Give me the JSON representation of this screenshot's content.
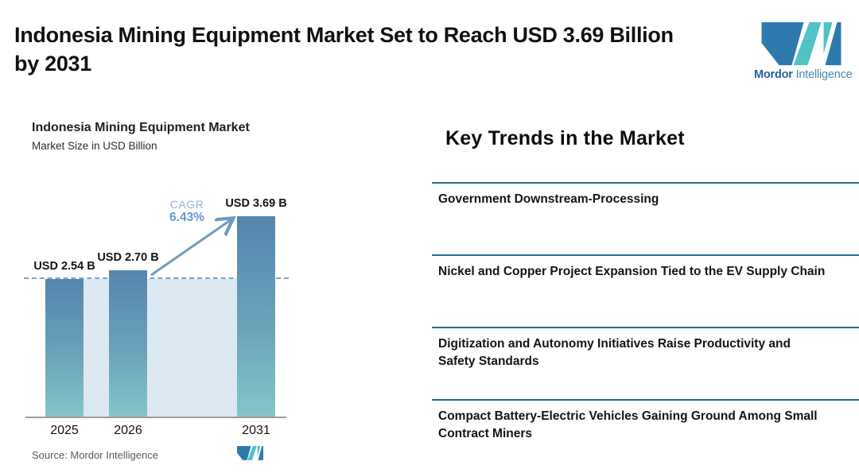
{
  "header": {
    "title": "Indonesia Mining Equipment Market Set to Reach USD 3.69 Billion by 2031",
    "title_lines": [
      "Indonesia Mining Equipment Market Set to Reach USD 3.69 Billion",
      "by 2031"
    ],
    "brand": {
      "name_bold": "Mordor",
      "name_light": "Intelligence"
    }
  },
  "chart": {
    "title": "Indonesia Mining Equipment Market",
    "subtitle": "Market Size in USD Billion",
    "cagr_label": "CAGR",
    "cagr_value": "6.43%",
    "source": "Source: Mordor Intelligence"
  },
  "chart_data": {
    "type": "bar",
    "categories": [
      "2025",
      "2026",
      "2031"
    ],
    "values": [
      2.54,
      2.7,
      3.69
    ],
    "value_labels": [
      "USD 2.54 B",
      "USD 2.70 B",
      "USD 3.69 B"
    ],
    "title": "Indonesia Mining Equipment Market",
    "ylabel": "Market Size in USD Billion",
    "ylim": [
      0,
      3.9
    ],
    "grid": false,
    "annotations": [
      {
        "type": "cagr-arrow",
        "label": "CAGR",
        "value": "6.43%",
        "from_category": "2026",
        "to_category": "2031"
      },
      {
        "type": "reference-line",
        "style": "dashed",
        "at_value": 2.54
      }
    ]
  },
  "trends": {
    "heading": "Key Trends in the Market",
    "items": [
      {
        "label": "Government Downstream-Processing"
      },
      {
        "label": "Nickel and Copper Project Expansion Tied to the EV Supply Chain"
      },
      {
        "label": "Digitization and Autonomy Initiatives Raise Productivity and Safety Standards"
      },
      {
        "label": "Compact Battery-Electric Vehicles Gaining Ground Among Small Contract Miners"
      }
    ]
  },
  "colors": {
    "bar_top": "#5585ad",
    "bar_mid": "#6ba2b9",
    "bar_bottom": "#85c6c9",
    "band": "#dde9f2",
    "dash": "#7aa6c8",
    "axis": "#9e9e9e",
    "divider": "#27698f",
    "arrow": "#6b9bc3",
    "cagr_label": "#92b5d9",
    "cagr_value": "#6596cc",
    "logo_dark": "#2e7ab0",
    "logo_teal": "#4fc3c8",
    "brand_dark": "#26639b",
    "brand_light": "#4b87b3",
    "source_text": "#595959"
  }
}
